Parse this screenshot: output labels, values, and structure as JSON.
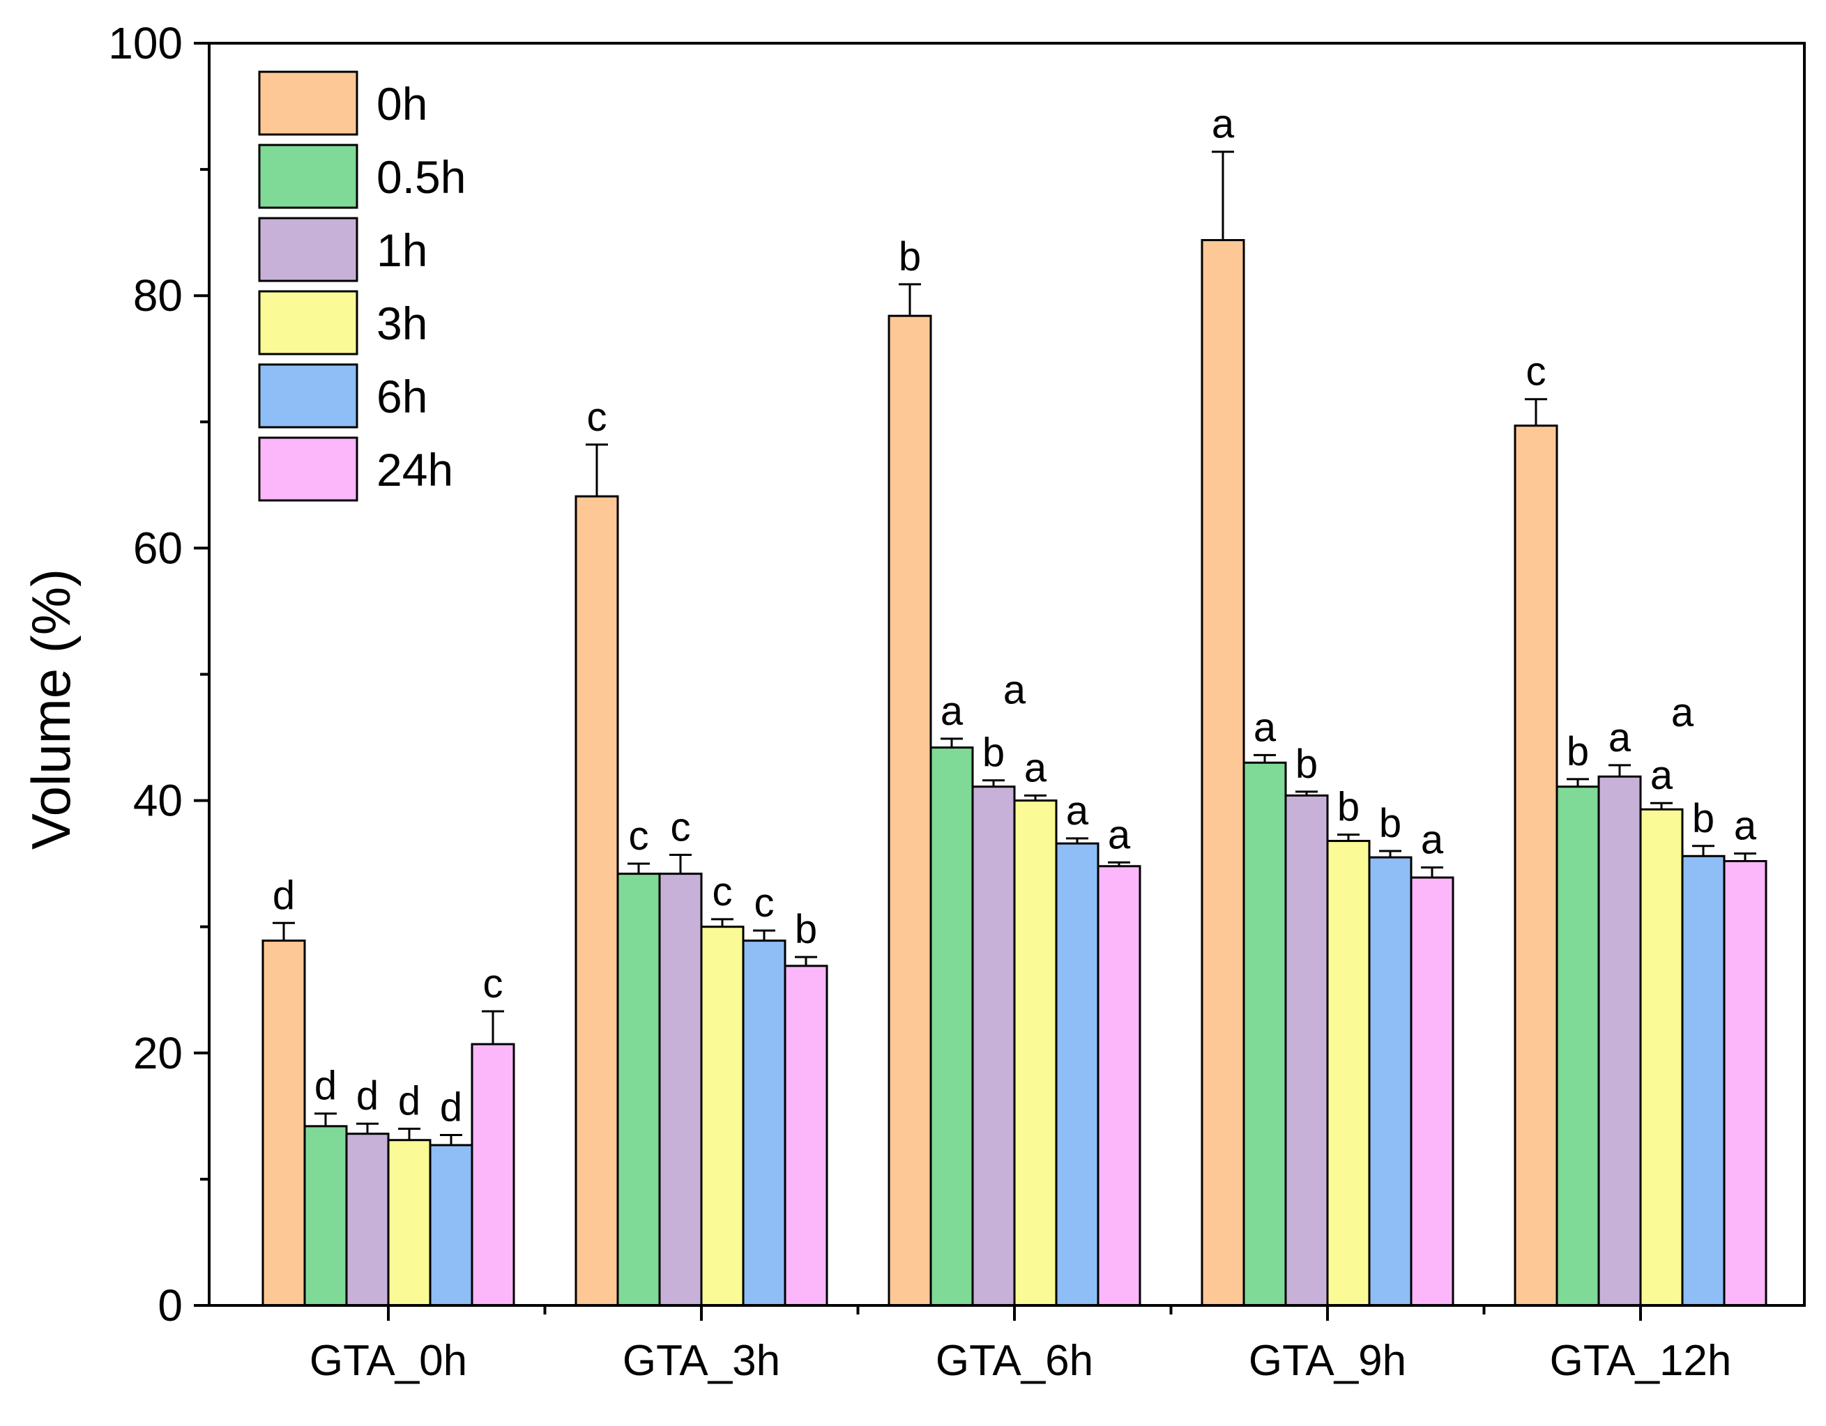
{
  "chart_data": {
    "type": "bar",
    "title": "",
    "xlabel": "",
    "ylabel": "Volume (%)",
    "ylim": [
      0,
      100
    ],
    "yticks": [
      "0",
      "20",
      "40",
      "60",
      "80",
      "100"
    ],
    "legend_position": "top-left",
    "error_bars": true,
    "categories": [
      "GTA_0h",
      "GTA_3h",
      "GTA_6h",
      "GTA_9h",
      "GTA_12h"
    ],
    "series": [
      {
        "name": "0h",
        "color": "#FDC896",
        "values": [
          28.9,
          64.1,
          78.4,
          84.4,
          69.7
        ],
        "errors": [
          1.4,
          4.1,
          2.5,
          7.0,
          2.1
        ],
        "significance": [
          "d",
          "c",
          "b",
          "a",
          "c"
        ]
      },
      {
        "name": "0.5h",
        "color": "#7FD997",
        "values": [
          14.2,
          34.2,
          44.2,
          43.0,
          41.1
        ],
        "errors": [
          1.0,
          0.8,
          0.7,
          0.6,
          0.6
        ],
        "significance": [
          "d",
          "c",
          "a",
          "a",
          "b"
        ]
      },
      {
        "name": "1h",
        "color": "#C8B1D9",
        "values": [
          13.6,
          34.2,
          41.1,
          40.4,
          41.9
        ],
        "errors": [
          0.8,
          1.5,
          0.5,
          0.3,
          0.9
        ],
        "significance": [
          "d",
          "c",
          "b",
          "b",
          "a"
        ]
      },
      {
        "name": "3h",
        "color": "#FAFA96",
        "values": [
          13.1,
          30.0,
          40.0,
          36.8,
          39.3
        ],
        "errors": [
          0.9,
          0.6,
          0.4,
          0.5,
          0.5
        ],
        "significance": [
          "d",
          "c",
          "a",
          "b",
          "a"
        ]
      },
      {
        "name": "6h",
        "color": "#8EBEF5",
        "values": [
          12.7,
          28.9,
          36.6,
          35.5,
          35.6
        ],
        "errors": [
          0.8,
          0.8,
          0.4,
          0.5,
          0.8
        ],
        "significance": [
          "d",
          "c",
          "a",
          "b",
          "b"
        ]
      },
      {
        "name": "24h",
        "color": "#FCB6FA",
        "values": [
          20.7,
          26.9,
          34.8,
          33.9,
          35.2
        ],
        "errors": [
          2.6,
          0.7,
          0.3,
          0.8,
          0.6
        ],
        "significance": [
          "c",
          "b",
          "a",
          "a",
          "a"
        ]
      }
    ],
    "extra_annotations": [
      {
        "category": "GTA_6h",
        "after_series": "1h",
        "text": "a"
      },
      {
        "category": "GTA_12h",
        "after_series": "3h",
        "text": "a"
      }
    ]
  }
}
